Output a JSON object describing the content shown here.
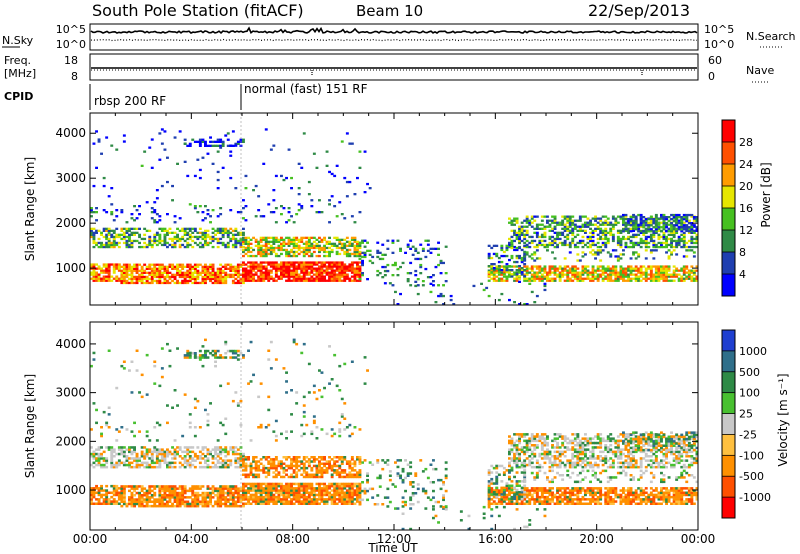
{
  "header": {
    "station": "South Pole Station (fitACF)",
    "beam": "Beam 10",
    "date": "22/Sep/2013"
  },
  "top_panels": {
    "nsky_label": "N.Sky",
    "nsky_ticks": [
      "10^5",
      "10^0"
    ],
    "nsearch_label": "N.Search",
    "nsearch_ticks": [
      "10^5",
      "10^0"
    ],
    "freq_label": "Freq.",
    "freq_unit": "[MHz]",
    "freq_ticks": [
      "18",
      "8"
    ],
    "nave_label": "Nave",
    "nave_ticks": [
      "60",
      "0"
    ],
    "cpid_label": "CPID",
    "cpid_segments": [
      {
        "label": "rbsp 200 RF",
        "start_h": 0
      },
      {
        "label": "normal (fast) 151 RF",
        "start_h": 6
      }
    ]
  },
  "chart_data": [
    {
      "type": "heatmap",
      "name": "power",
      "xlabel": "",
      "ylabel": "Slant Range [km]",
      "xlim": [
        0,
        24
      ],
      "ylim": [
        180,
        4450
      ],
      "yticks": [
        1000,
        2000,
        3000,
        4000
      ],
      "colorbar_label": "Power [dB]",
      "colorbar_range": [
        0,
        32
      ],
      "colorbar_ticks": [
        "4",
        "8",
        "12",
        "16",
        "20",
        "24",
        "28"
      ],
      "colors": [
        "#0000ff",
        "#1f3fb0",
        "#2f8a46",
        "#46c020",
        "#e6e600",
        "#ff9c00",
        "#ff5000",
        "#ff0000"
      ]
    },
    {
      "type": "heatmap",
      "name": "velocity",
      "xlabel": "Time UT",
      "ylabel": "Slant Range [km]",
      "xlim": [
        0,
        24
      ],
      "ylim": [
        180,
        4450
      ],
      "yticks": [
        1000,
        2000,
        3000,
        4000
      ],
      "xtick_labels": [
        "00:00",
        "04:00",
        "08:00",
        "12:00",
        "16:00",
        "20:00",
        "00:00"
      ],
      "colorbar_label": "Velocity [m s⁻¹]",
      "colorbar_ticks": [
        "1000",
        "500",
        "100",
        "25",
        "-25",
        "-100",
        "-500",
        "-1000"
      ],
      "colors": [
        "#1f3fd0",
        "#2f6f8a",
        "#2e8a46",
        "#48c030",
        "#c8c8c8",
        "#ffc040",
        "#ff9000",
        "#ff5000",
        "#ff0000"
      ]
    }
  ]
}
